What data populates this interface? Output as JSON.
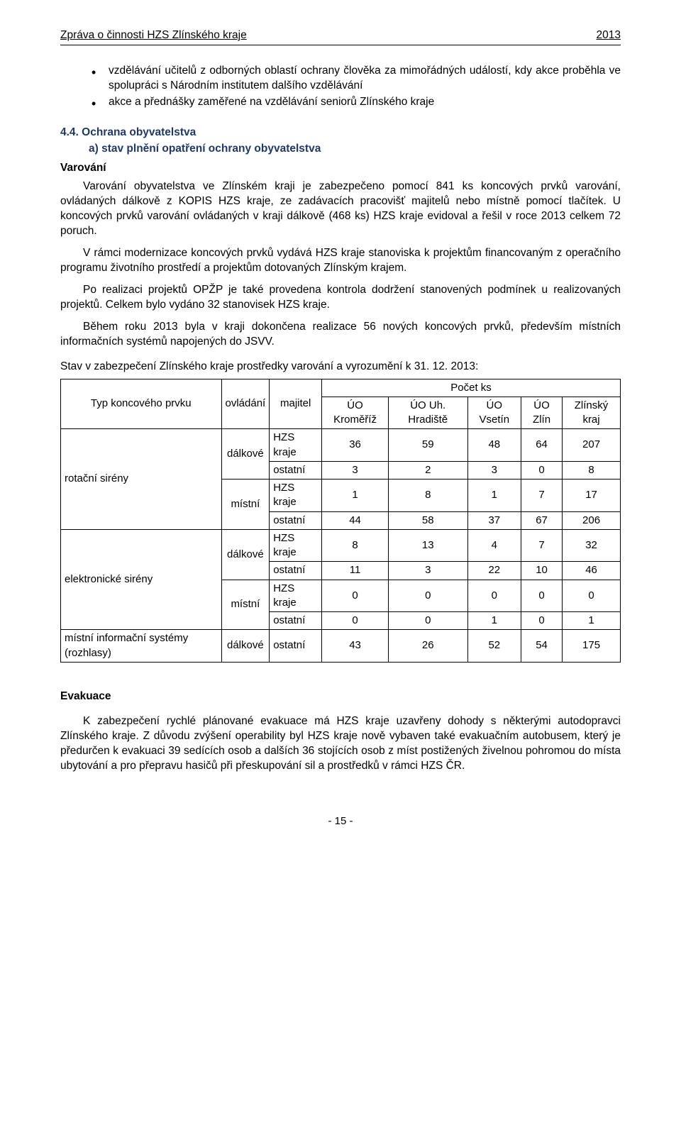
{
  "header": {
    "title": "Zpráva o činnosti HZS Zlínského kraje",
    "year": "2013"
  },
  "bullets": [
    "vzdělávání učitelů z odborných oblastí ochrany člověka za mimořádných událostí, kdy akce proběhla ve spolupráci s Národním institutem dalšího vzdělávání",
    "akce a přednášky zaměřené na vzdělávání seniorů Zlínského kraje"
  ],
  "section": {
    "num_title": "4.4. Ochrana obyvatelstva",
    "sub_a": "a) stav plnění opatření ochrany obyvatelstva",
    "varovani_head": "Varování",
    "p1": "Varování obyvatelstva ve Zlínském kraji je zabezpečeno pomocí 841 ks koncových prvků varování, ovládaných dálkově z KOPIS HZS kraje, ze zadávacích pracovišť majitelů nebo místně pomocí tlačítek. U koncových prvků varování ovládaných v kraji dálkově (468 ks) HZS kraje evidoval a řešil v roce 2013 celkem 72 poruch.",
    "p2": "V rámci modernizace koncových prvků vydává HZS kraje stanoviska k projektům financovaným z operačního programu životního prostředí a projektům dotovaných Zlínským krajem.",
    "p3": "Po realizaci projektů OPŽP je také provedena kontrola dodržení stanovených podmínek u realizovaných projektů. Celkem bylo vydáno 32 stanovisek HZS kraje.",
    "p4": "Během roku 2013 byla v kraji dokončena realizace 56 nových koncových prvků, především místních informačních systémů napojených do JSVV."
  },
  "table": {
    "caption": "Stav v zabezpečení Zlínského kraje prostředky varování a vyrozumění k 31. 12. 2013:",
    "h_typ": "Typ koncového prvku",
    "h_ovladani": "ovládání",
    "h_majitel": "majitel",
    "h_pocet": "Počet ks",
    "h_uo_km": "ÚO Kroměříž",
    "h_uo_uh": "ÚO Uh. Hradiště",
    "h_uo_vs": "ÚO Vsetín",
    "h_uo_zl": "ÚO Zlín",
    "h_zk": "Zlínský kraj",
    "typ_rotacni": "rotační sirény",
    "typ_elektro": "elektronické sirény",
    "typ_mistni": "místní informační systémy (rozhlasy)",
    "ovl_dalkove": "dálkové",
    "ovl_mistni": "místní",
    "maj_hzs": "HZS kraje",
    "maj_ostatni": "ostatní",
    "r1": [
      "36",
      "59",
      "48",
      "64",
      "207"
    ],
    "r2": [
      "3",
      "2",
      "3",
      "0",
      "8"
    ],
    "r3": [
      "1",
      "8",
      "1",
      "7",
      "17"
    ],
    "r4": [
      "44",
      "58",
      "37",
      "67",
      "206"
    ],
    "r5": [
      "8",
      "13",
      "4",
      "7",
      "32"
    ],
    "r6": [
      "11",
      "3",
      "22",
      "10",
      "46"
    ],
    "r7": [
      "0",
      "0",
      "0",
      "0",
      "0"
    ],
    "r8": [
      "0",
      "0",
      "1",
      "0",
      "1"
    ],
    "r9": [
      "43",
      "26",
      "52",
      "54",
      "175"
    ]
  },
  "evakuace": {
    "head": "Evakuace",
    "p": "K zabezpečení rychlé plánované evakuace má HZS kraje uzavřeny dohody s některými autodopravci Zlínského kraje. Z důvodu zvýšení operability byl HZS kraje nově vybaven také evakuačním autobusem, který je předurčen k evakuaci 39 sedících osob a dalších 36 stojících osob z míst postižených živelnou pohromou do místa ubytování a pro přepravu hasičů při přeskupování sil a prostředků v rámci HZS ČR."
  },
  "footer": "- 15 -"
}
